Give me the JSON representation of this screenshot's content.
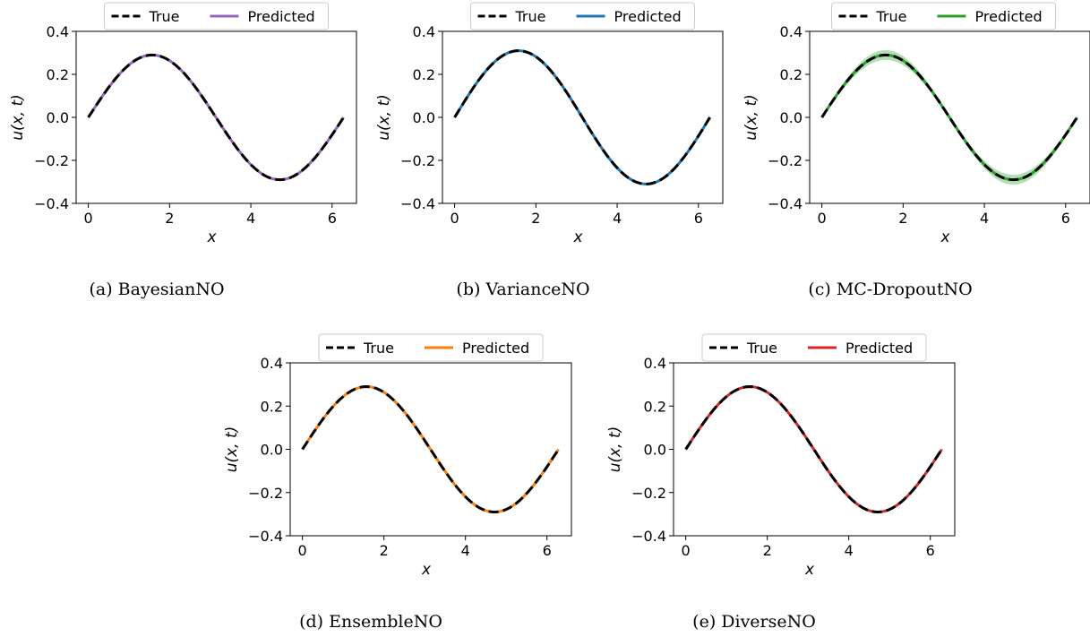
{
  "chart_data": [
    {
      "type": "line",
      "caption": "(a) BayesianNO",
      "xlabel": "x",
      "ylabel": "u(x, t)",
      "xlim": [
        -0.3,
        6.6
      ],
      "ylim": [
        -0.4,
        0.4
      ],
      "xticks": [
        0,
        2,
        4,
        6
      ],
      "yticks": [
        -0.4,
        -0.2,
        0.0,
        0.2,
        0.4
      ],
      "ytick_labels": [
        "−0.4",
        "−0.2",
        "0.0",
        "0.2",
        "0.4"
      ],
      "legend": {
        "placement": "top-center",
        "entries": [
          "True",
          "Predicted"
        ]
      },
      "grid": false,
      "series": [
        {
          "name": "True",
          "style": "dashed",
          "color": "#000000",
          "function": "0.29*sin(x)",
          "x_range": [
            0,
            6.283
          ],
          "amplitude": 0.29
        },
        {
          "name": "Predicted",
          "style": "solid",
          "color": "#9467bd",
          "function": "0.29*sin(x)",
          "x_range": [
            0,
            6.283
          ],
          "amplitude": 0.29
        }
      ]
    },
    {
      "type": "line",
      "caption": "(b) VarianceNO",
      "xlabel": "x",
      "ylabel": "u(x, t)",
      "xlim": [
        -0.3,
        6.6
      ],
      "ylim": [
        -0.4,
        0.4
      ],
      "xticks": [
        0,
        2,
        4,
        6
      ],
      "yticks": [
        -0.4,
        -0.2,
        0.0,
        0.2,
        0.4
      ],
      "ytick_labels": [
        "−0.4",
        "−0.2",
        "0.0",
        "0.2",
        "0.4"
      ],
      "legend": {
        "placement": "top-center",
        "entries": [
          "True",
          "Predicted"
        ]
      },
      "grid": false,
      "series": [
        {
          "name": "True",
          "style": "dashed",
          "color": "#000000",
          "function": "0.31*sin(x)",
          "x_range": [
            0,
            6.283
          ],
          "amplitude": 0.31
        },
        {
          "name": "Predicted",
          "style": "solid",
          "color": "#1f77b4",
          "function": "0.31*sin(x)",
          "x_range": [
            0,
            6.283
          ],
          "amplitude": 0.31
        }
      ]
    },
    {
      "type": "line",
      "caption": "(c) MC-DropoutNO",
      "xlabel": "x",
      "ylabel": "u(x, t)",
      "xlim": [
        -0.3,
        6.6
      ],
      "ylim": [
        -0.4,
        0.4
      ],
      "xticks": [
        0,
        2,
        4,
        6
      ],
      "yticks": [
        -0.4,
        -0.2,
        0.0,
        0.2,
        0.4
      ],
      "ytick_labels": [
        "−0.4",
        "−0.2",
        "0.0",
        "0.2",
        "0.4"
      ],
      "legend": {
        "placement": "top-center",
        "entries": [
          "True",
          "Predicted"
        ]
      },
      "grid": false,
      "uncertainty_band": {
        "color": "#2ca02c",
        "half_width": 0.02
      },
      "series": [
        {
          "name": "True",
          "style": "dashed",
          "color": "#000000",
          "function": "0.29*sin(x)",
          "x_range": [
            0,
            6.283
          ],
          "amplitude": 0.29
        },
        {
          "name": "Predicted",
          "style": "solid",
          "color": "#2ca02c",
          "function": "0.29*sin(x)",
          "x_range": [
            0,
            6.283
          ],
          "amplitude": 0.29
        }
      ]
    },
    {
      "type": "line",
      "caption": "(d) EnsembleNO",
      "xlabel": "x",
      "ylabel": "u(x, t)",
      "xlim": [
        -0.3,
        6.6
      ],
      "ylim": [
        -0.4,
        0.4
      ],
      "xticks": [
        0,
        2,
        4,
        6
      ],
      "yticks": [
        -0.4,
        -0.2,
        0.0,
        0.2,
        0.4
      ],
      "ytick_labels": [
        "−0.4",
        "−0.2",
        "0.0",
        "0.2",
        "0.4"
      ],
      "legend": {
        "placement": "top-center",
        "entries": [
          "True",
          "Predicted"
        ]
      },
      "grid": false,
      "series": [
        {
          "name": "True",
          "style": "dashed",
          "color": "#000000",
          "function": "0.29*sin(x)",
          "x_range": [
            0,
            6.283
          ],
          "amplitude": 0.29
        },
        {
          "name": "Predicted",
          "style": "solid",
          "color": "#ff7f0e",
          "function": "0.29*sin(x)",
          "x_range": [
            0,
            6.283
          ],
          "amplitude": 0.29
        }
      ]
    },
    {
      "type": "line",
      "caption": "(e) DiverseNO",
      "xlabel": "x",
      "ylabel": "u(x, t)",
      "xlim": [
        -0.3,
        6.6
      ],
      "ylim": [
        -0.4,
        0.4
      ],
      "xticks": [
        0,
        2,
        4,
        6
      ],
      "yticks": [
        -0.4,
        -0.2,
        0.0,
        0.2,
        0.4
      ],
      "ytick_labels": [
        "−0.4",
        "−0.2",
        "0.0",
        "0.2",
        "0.4"
      ],
      "legend": {
        "placement": "top-center",
        "entries": [
          "True",
          "Predicted"
        ]
      },
      "grid": false,
      "series": [
        {
          "name": "True",
          "style": "dashed",
          "color": "#000000",
          "function": "0.29*sin(x)",
          "x_range": [
            0,
            6.283
          ],
          "amplitude": 0.29
        },
        {
          "name": "Predicted",
          "style": "solid",
          "color": "#d62728",
          "function": "0.29*sin(x)",
          "x_range": [
            0,
            6.283
          ],
          "amplitude": 0.29
        }
      ]
    }
  ]
}
